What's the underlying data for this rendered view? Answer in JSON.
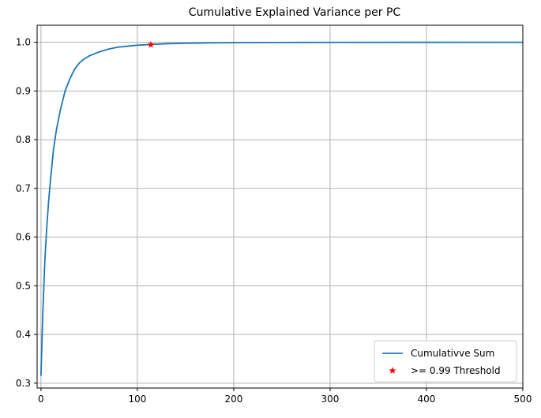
{
  "chart_data": {
    "type": "line",
    "title": "Cumulative Explained Variance per PC",
    "xlabel": "",
    "ylabel": "",
    "xlim": [
      -4,
      500
    ],
    "ylim": [
      0.29,
      1.035
    ],
    "xticks": [
      0,
      100,
      200,
      300,
      400,
      500
    ],
    "yticks": [
      0.3,
      0.4,
      0.5,
      0.6,
      0.7,
      0.8,
      0.9,
      1.0
    ],
    "xtick_labels": [
      "0",
      "100",
      "200",
      "300",
      "400",
      "500"
    ],
    "ytick_labels": [
      "0.3",
      "0.4",
      "0.5",
      "0.6",
      "0.7",
      "0.8",
      "0.9",
      "1.0"
    ],
    "grid": true,
    "legend_position": "bottom-right",
    "series": [
      {
        "name": "Cumulativve Sum",
        "color": "#1f77b4",
        "marker": "line",
        "x": [
          0,
          2,
          4,
          6,
          8,
          10,
          13,
          16,
          20,
          25,
          30,
          35,
          40,
          45,
          50,
          60,
          70,
          80,
          90,
          100,
          115,
          130,
          150,
          175,
          200,
          250,
          300,
          400,
          500
        ],
        "y": [
          0.315,
          0.45,
          0.55,
          0.62,
          0.675,
          0.72,
          0.78,
          0.82,
          0.86,
          0.9,
          0.925,
          0.945,
          0.958,
          0.966,
          0.972,
          0.98,
          0.986,
          0.99,
          0.992,
          0.994,
          0.9955,
          0.997,
          0.998,
          0.9987,
          0.9992,
          0.9996,
          0.9998,
          0.9999,
          1.0
        ]
      },
      {
        "name": ">= 0.99 Threshold",
        "color": "#ff0000",
        "marker": "star",
        "x": [
          114
        ],
        "y": [
          0.995
        ]
      }
    ]
  }
}
